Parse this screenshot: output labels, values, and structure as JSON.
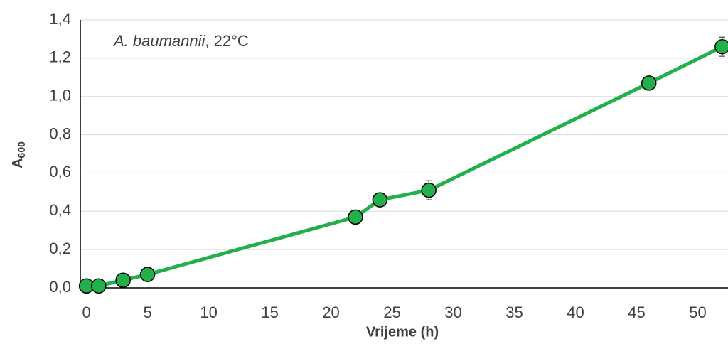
{
  "chart_data": {
    "type": "line",
    "annotation": {
      "italic": "A. baumannii",
      "text": ", 22°C"
    },
    "xlabel": "Vrijeme (h)",
    "ylabel": {
      "text": "A",
      "subscript": "600"
    },
    "x": [
      0,
      1,
      3,
      5,
      22,
      24,
      28,
      46,
      52
    ],
    "series": [
      {
        "color": "#22b04b",
        "values": [
          0.01,
          0.01,
          0.04,
          0.07,
          0.37,
          0.46,
          0.51,
          1.07,
          1.26
        ],
        "errors": [
          0.01,
          0.01,
          0.01,
          0.01,
          0.01,
          0.01,
          0.05,
          0.01,
          0.05
        ]
      }
    ],
    "xlim": [
      -0.5,
      52.47
    ],
    "xticks": [
      0,
      5,
      10,
      15,
      20,
      25,
      30,
      35,
      40,
      45,
      50
    ],
    "ylim": [
      0,
      1.4
    ],
    "yticks": [
      {
        "value": 0,
        "label": "0,0"
      },
      {
        "value": 0.2,
        "label": "0,2"
      },
      {
        "value": 0.4,
        "label": "0,4"
      },
      {
        "value": 0.6,
        "label": "0,6"
      },
      {
        "value": 0.8,
        "label": "0,8"
      },
      {
        "value": 1.0,
        "label": "1,0"
      },
      {
        "value": 1.2,
        "label": "1,2"
      },
      {
        "value": 1.4,
        "label": "1,4"
      }
    ],
    "grid": true
  }
}
